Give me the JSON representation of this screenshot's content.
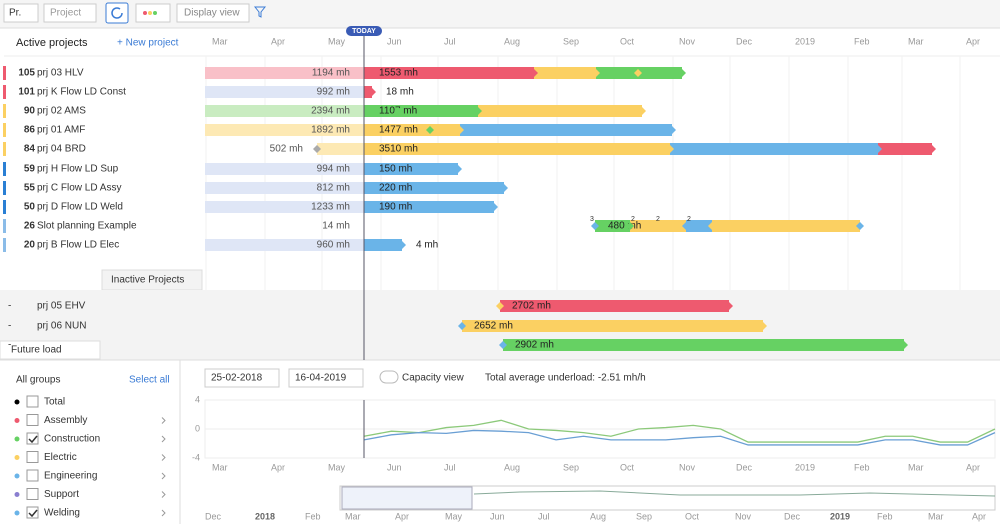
{
  "toolbar": {
    "priority_select": "Pr.",
    "project_placeholder": "Project",
    "display_view": "Display view"
  },
  "timeline": {
    "today": "TODAY",
    "months": [
      "Mar",
      "Apr",
      "May",
      "Jun",
      "Jul",
      "Aug",
      "Sep",
      "Oct",
      "Nov",
      "Dec",
      "2019",
      "Feb",
      "Mar",
      "Apr"
    ]
  },
  "active": {
    "title": "Active projects",
    "new_project": "+ New project",
    "projects": [
      {
        "priority": 105,
        "name": "prj 03 HLV",
        "past_load": "1194 mh",
        "future_load": "1553 mh"
      },
      {
        "priority": 101,
        "name": "prj K Flow LD Const",
        "past_load": "992 mh",
        "future_load": "18 mh"
      },
      {
        "priority": 90,
        "name": "prj 02 AMS",
        "past_load": "2394 mh",
        "future_load": "1107 mh"
      },
      {
        "priority": 86,
        "name": "prj 01 AMF",
        "past_load": "1892 mh",
        "future_load": "1477 mh"
      },
      {
        "priority": 84,
        "name": "prj 04 BRD",
        "past_load": "502 mh",
        "future_load": "3510 mh"
      },
      {
        "priority": 59,
        "name": "prj H Flow LD Sup",
        "past_load": "994 mh",
        "future_load": "150 mh"
      },
      {
        "priority": 55,
        "name": "prj C Flow LD Assy",
        "past_load": "812 mh",
        "future_load": "220 mh"
      },
      {
        "priority": 50,
        "name": "prj D Flow LD Weld",
        "past_load": "1233 mh",
        "future_load": "190 mh"
      },
      {
        "priority": 26,
        "name": "Slot planning Example",
        "past_load": "14 mh",
        "future_load": "480 mh",
        "marker_labels": [
          "3",
          "2",
          "2",
          "2"
        ]
      },
      {
        "priority": 20,
        "name": "prj B Flow LD Elec",
        "past_load": "960 mh",
        "future_load": "4 mh"
      }
    ]
  },
  "inactive": {
    "tab": "Inactive Projects",
    "projects": [
      {
        "name": "prj 05 EHV",
        "load": "2702 mh"
      },
      {
        "name": "prj 06 NUN",
        "load": "2652 mh"
      },
      {
        "load": "2902 mh"
      }
    ]
  },
  "future_load": {
    "tab": "Future load",
    "all_groups": "All groups",
    "select_all": "Select all",
    "date_from": "25-02-2018",
    "date_to": "16-04-2019",
    "capacity_view": "Capacity view",
    "summary": "Total average underload: -2.51 mh/h",
    "groups": [
      {
        "name": "Total",
        "checked": false,
        "color": "#000000"
      },
      {
        "name": "Assembly",
        "checked": false,
        "color": "#ee5a6f"
      },
      {
        "name": "Construction",
        "checked": true,
        "color": "#66d163"
      },
      {
        "name": "Electric",
        "checked": false,
        "color": "#fbd062"
      },
      {
        "name": "Engineering",
        "checked": false,
        "color": "#6ab4e8"
      },
      {
        "name": "Support",
        "checked": false,
        "color": "#8a7fd0"
      },
      {
        "name": "Welding",
        "checked": true,
        "color": "#6ab4e8"
      }
    ],
    "chart": {
      "ylim": [
        -4,
        4
      ],
      "yticks": [
        4,
        0,
        -4
      ],
      "series": [
        {
          "color": "#8cc97a",
          "values": [
            -1,
            -0.3,
            -0.5,
            0.2,
            0.5,
            1.2,
            0,
            -0.2,
            -0.5,
            -1,
            0,
            0.2,
            0.5,
            0,
            -1.8,
            -1.8,
            -1.8,
            -1.8,
            -1.8,
            -1,
            -1,
            -1.8,
            -1.8,
            0
          ]
        },
        {
          "color": "#6a9fd4",
          "values": [
            -1.5,
            -0.8,
            -0.5,
            -0.6,
            -0.2,
            -0.3,
            -0.5,
            -1.5,
            -1,
            -1.5,
            -1.5,
            -1.5,
            -1.2,
            -1,
            -2.2,
            -2.2,
            -2.2,
            -2.2,
            -2.2,
            -1.5,
            -1.5,
            -2.2,
            -2.2,
            -0.5
          ]
        }
      ]
    },
    "overview_months": [
      "Dec",
      "2018",
      "Feb",
      "Mar",
      "Apr",
      "May",
      "Jun",
      "Jul",
      "Aug",
      "Sep",
      "Oct",
      "Nov",
      "Dec",
      "2019",
      "Feb",
      "Mar",
      "Apr"
    ]
  }
}
